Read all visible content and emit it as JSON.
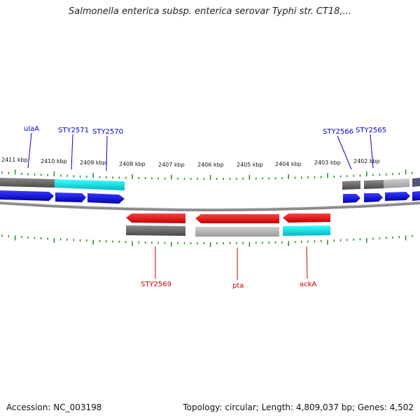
{
  "title": "Salmonella enterica subsp. enterica serovar Typhi str. CT18,...",
  "footer": {
    "accession": "Accession: NC_003198",
    "topology": "Topology: circular; Length: 4,809,037 bp; Genes: 4,502"
  },
  "ruler": {
    "tick_labels": [
      "2411 kbp",
      "2410 kbp",
      "2409 kbp",
      "2408 kbp",
      "2407 kbp",
      "2406 kbp",
      "2405 kbp",
      "2404 kbp",
      "2403 kbp",
      "2402 kbp"
    ]
  },
  "genes_top": [
    {
      "name": "ulaA",
      "color": "#0000cc"
    },
    {
      "name": "STY2571",
      "color": "#0000cc"
    },
    {
      "name": "STY2570",
      "color": "#0000cc"
    },
    {
      "name": "STY2566",
      "color": "#0000cc"
    },
    {
      "name": "STY2565",
      "color": "#0000cc"
    }
  ],
  "genes_bottom": [
    {
      "name": "STY2569",
      "color": "#cc0000"
    },
    {
      "name": "pta",
      "color": "#cc0000"
    },
    {
      "name": "ackA",
      "color": "#cc0000"
    }
  ],
  "colors": {
    "forward_arrow": "#0000ee",
    "reverse_arrow": "#ee0000",
    "tick": "#228b22",
    "backbone": "#888888",
    "feature_dark": "#666666",
    "feature_light": "#b0b0b0",
    "feature_cyan": "#00d4d4"
  }
}
